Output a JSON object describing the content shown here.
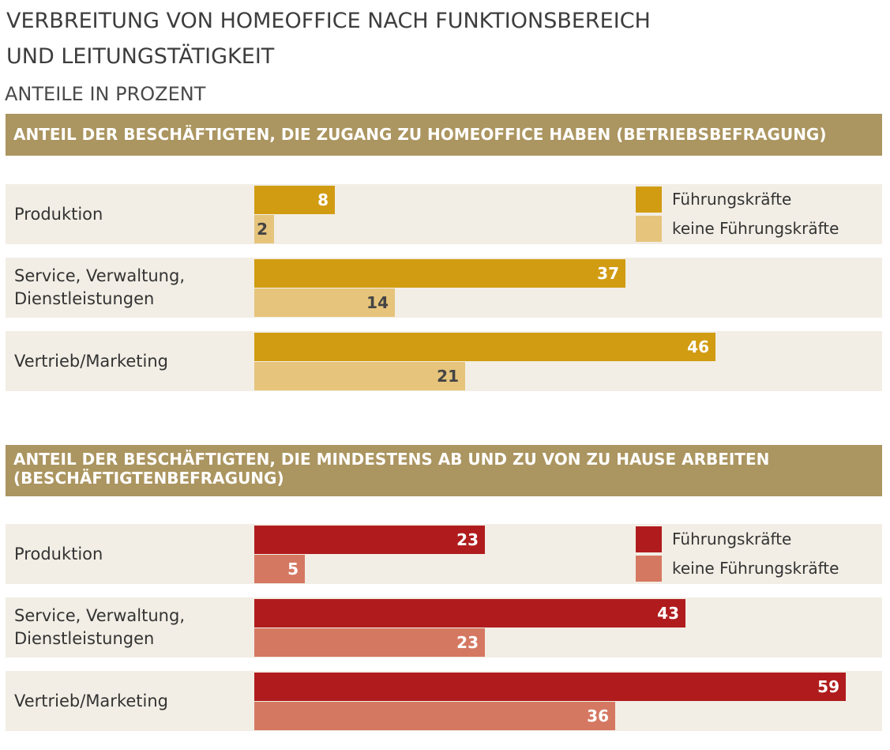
{
  "title": {
    "line1": "VERBREITUNG VON HOMEOFFICE NACH FUNKTIONSBEREICH",
    "line2": "UND LEITUNGSTÄTIGKEIT"
  },
  "subtitle": "ANTEILE IN PROZENT",
  "colors": {
    "header_bg": "#ab9560",
    "row_bg": "#f2eee5",
    "gold_dark": "#d19c12",
    "gold_light": "#e6c47c",
    "red_dark": "#b01c1d",
    "red_light": "#d57862"
  },
  "chart_data": [
    {
      "type": "bar",
      "orientation": "horizontal",
      "title": "ANTEIL DER BESCHÄFTIGTEN, DIE ZUGANG ZU HOMEOFFICE HABEN (BETRIEBSBEFRAGUNG)",
      "categories": [
        "Produktion",
        "Service, Verwaltung, Dienstleistungen",
        "Vertrieb/Marketing"
      ],
      "category_lines": [
        [
          "Produktion"
        ],
        [
          "Service, Verwaltung,",
          "Dienstleistungen"
        ],
        [
          "Vertrieb/Marketing"
        ]
      ],
      "series": [
        {
          "name": "Führungskräfte",
          "values": [
            8,
            37,
            46
          ],
          "color": "#d19c12",
          "label_color": "#ffffff"
        },
        {
          "name": "keine Führungskräfte",
          "values": [
            2,
            14,
            21
          ],
          "color": "#e6c47c",
          "label_color": "#444444"
        }
      ],
      "legend": "top-right",
      "xlim": [
        0,
        100
      ],
      "grid": false
    },
    {
      "type": "bar",
      "orientation": "horizontal",
      "title": "ANTEIL DER BESCHÄFTIGTEN, DIE MINDESTENS AB UND ZU VON ZU HAUSE ARBEITEN (BESCHÄFTIGTENBEFRAGUNG)",
      "title_lines": [
        "ANTEIL DER BESCHÄFTIGTEN, DIE MINDESTENS AB UND ZU VON ZU HAUSE ARBEITEN",
        "(BESCHÄFTIGTENBEFRAGUNG)"
      ],
      "categories": [
        "Produktion",
        "Service, Verwaltung, Dienstleistungen",
        "Vertrieb/Marketing"
      ],
      "category_lines": [
        [
          "Produktion"
        ],
        [
          "Service, Verwaltung,",
          "Dienstleistungen"
        ],
        [
          "Vertrieb/Marketing"
        ]
      ],
      "series": [
        {
          "name": "Führungskräfte",
          "values": [
            23,
            43,
            59
          ],
          "color": "#b01c1d",
          "label_color": "#ffffff"
        },
        {
          "name": "keine Führungskräfte",
          "values": [
            5,
            23,
            36
          ],
          "color": "#d57862",
          "label_color": "#ffffff"
        }
      ],
      "legend": "top-right",
      "xlim": [
        0,
        100
      ],
      "grid": false
    }
  ]
}
